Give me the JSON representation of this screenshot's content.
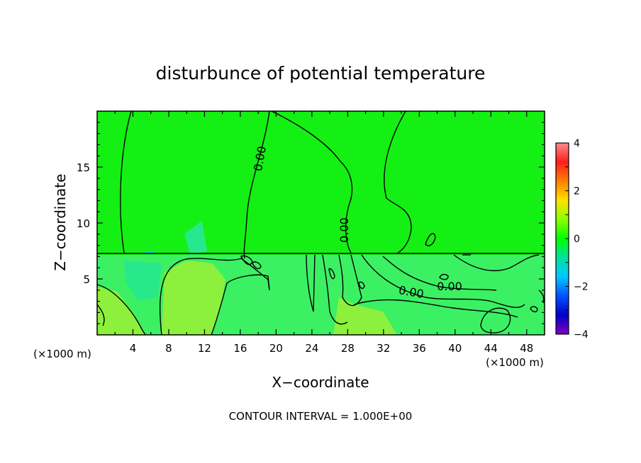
{
  "chart_data": {
    "type": "heatmap",
    "title": "disturbunce of potential temperature",
    "xlabel": "X−coordinate",
    "ylabel": "Z−coordinate",
    "x_unit_left": "(×1000 m)",
    "x_unit_right": "(×1000 m)",
    "xlim": [
      0,
      50
    ],
    "ylim": [
      0,
      20
    ],
    "xticks": [
      4,
      8,
      12,
      16,
      20,
      24,
      28,
      32,
      36,
      40,
      44,
      48
    ],
    "yticks": [
      5,
      10,
      15
    ],
    "colorbar": {
      "range": [
        -4,
        4
      ],
      "ticks": [
        4,
        2,
        0,
        -2,
        -4
      ],
      "colors": [
        "#ff8c8c",
        "#ff1e1e",
        "#ff8000",
        "#ffe000",
        "#8cff00",
        "#00ff00",
        "#00e0a0",
        "#00c8ff",
        "#0050ff",
        "#0000c8",
        "#8000c0"
      ]
    },
    "contour_labels": [
      "0.00",
      "0.00",
      "0.00",
      "0.00"
    ],
    "field_colors": {
      "upper": "#14f014",
      "lower": "#3cf064",
      "warm": "#8cf03c",
      "cool": "#28e88c"
    },
    "footer": "CONTOUR INTERVAL = 1.000E+00"
  }
}
